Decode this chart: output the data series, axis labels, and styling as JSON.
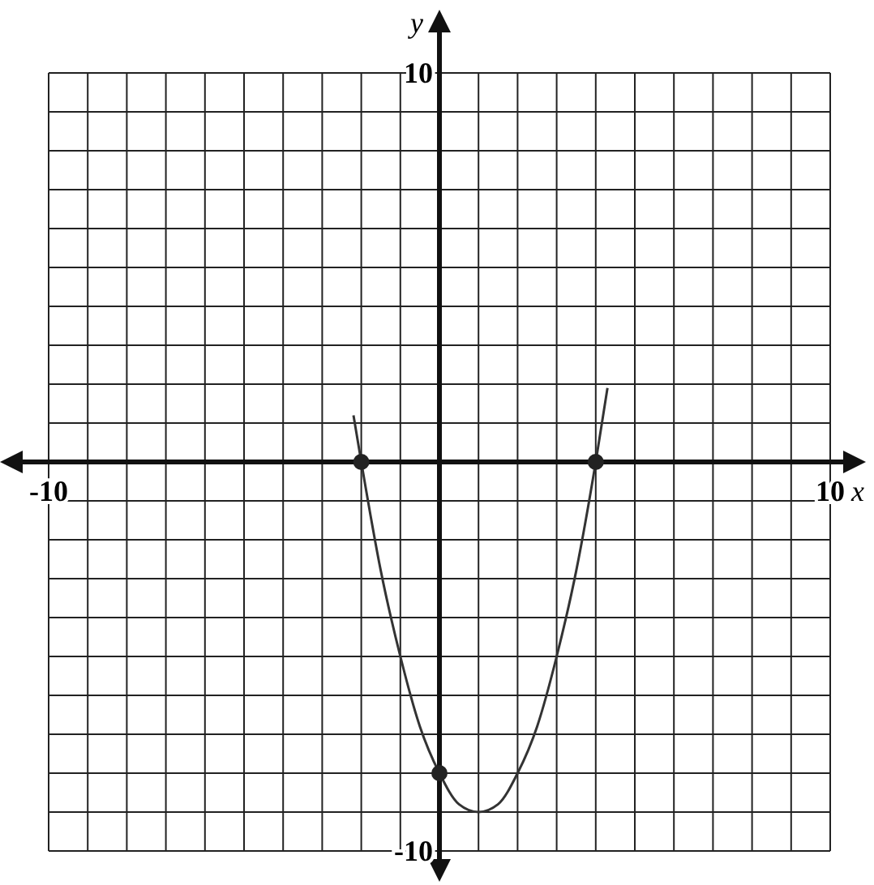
{
  "chart_data": {
    "type": "line",
    "xlabel": "x",
    "ylabel": "y",
    "xlim": [
      -10,
      10
    ],
    "ylim": [
      -10,
      10
    ],
    "xticks": [
      -10,
      {
        "value": -9,
        "label": null
      },
      {
        "value": -8,
        "label": null
      },
      {
        "value": -7,
        "label": null
      },
      {
        "value": -6,
        "label": null
      },
      {
        "value": -5,
        "label": null
      },
      {
        "value": -4,
        "label": null
      },
      {
        "value": -3,
        "label": null
      },
      {
        "value": -2,
        "label": null
      },
      {
        "value": -1,
        "label": null
      },
      {
        "value": 0,
        "label": null
      },
      {
        "value": 1,
        "label": null
      },
      {
        "value": 2,
        "label": null
      },
      {
        "value": 3,
        "label": null
      },
      {
        "value": 4,
        "label": null
      },
      {
        "value": 5,
        "label": null
      },
      {
        "value": 6,
        "label": null
      },
      {
        "value": 7,
        "label": null
      },
      {
        "value": 8,
        "label": null
      },
      {
        "value": 9,
        "label": null
      },
      10
    ],
    "yticks": [
      -10,
      {
        "value": -9,
        "label": null
      },
      {
        "value": -8,
        "label": null
      },
      {
        "value": -7,
        "label": null
      },
      {
        "value": -6,
        "label": null
      },
      {
        "value": -5,
        "label": null
      },
      {
        "value": -4,
        "label": null
      },
      {
        "value": -3,
        "label": null
      },
      {
        "value": -2,
        "label": null
      },
      {
        "value": -1,
        "label": null
      },
      {
        "value": 0,
        "label": null
      },
      {
        "value": 1,
        "label": null
      },
      {
        "value": 2,
        "label": null
      },
      {
        "value": 3,
        "label": null
      },
      {
        "value": 4,
        "label": null
      },
      {
        "value": 5,
        "label": null
      },
      {
        "value": 6,
        "label": null
      },
      {
        "value": 7,
        "label": null
      },
      {
        "value": 8,
        "label": null
      },
      {
        "value": 9,
        "label": null
      },
      10
    ],
    "grid": true,
    "series": [
      {
        "color": "#333333",
        "marker": "none",
        "x": [
          -2.2,
          -2,
          -1.5,
          -1,
          -0.5,
          0,
          0.5,
          1,
          1.5,
          2,
          2.5,
          3,
          3.5,
          4,
          4.3
        ],
        "values": [
          1.2,
          0,
          -2.8,
          -5,
          -6.8,
          -8,
          -8.8,
          -9,
          -8.8,
          -8,
          -6.8,
          -5,
          -2.8,
          0,
          1.9
        ]
      },
      {
        "type": "scatter",
        "color": "#222222",
        "marker": "circle",
        "x": [
          -2,
          4,
          0
        ],
        "values": [
          0,
          0,
          -8
        ]
      }
    ]
  }
}
